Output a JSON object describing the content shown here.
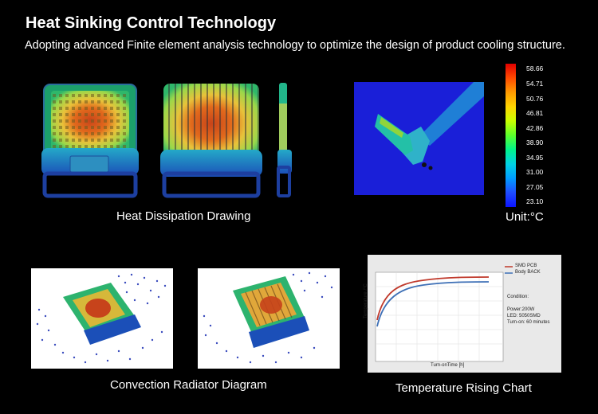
{
  "header": {
    "title": "Heat Sinking Control Technology",
    "subtitle": "Adopting advanced Finite element analysis technology to optimize the design of product cooling structure."
  },
  "captions": {
    "heat_dissipation": "Heat Dissipation Drawing",
    "unit": "Unit:°C",
    "convection": "Convection Radiator Diagram",
    "temperature_chart": "Temperature Rising Chart"
  },
  "legend": {
    "values": [
      "58.66",
      "54.71",
      "50.76",
      "46.81",
      "42.86",
      "38.90",
      "34.95",
      "31.00",
      "27.05",
      "23.10"
    ]
  },
  "chart_data": {
    "type": "line",
    "ylabel": "Temperature /°C",
    "xlabel": "Turn-onTime [h]",
    "series": [
      {
        "name": "SMD PCB",
        "color": "#c0392b"
      },
      {
        "name": "Body BACK",
        "color": "#3d6fb6"
      }
    ],
    "condition_lines": [
      "Condition:",
      "Power:200W",
      "LED: 5050SMD",
      "Turn-on: 60 minutes"
    ]
  },
  "colors": {
    "background": "#000000",
    "hot": "#e10000",
    "cold": "#0c14ff"
  }
}
